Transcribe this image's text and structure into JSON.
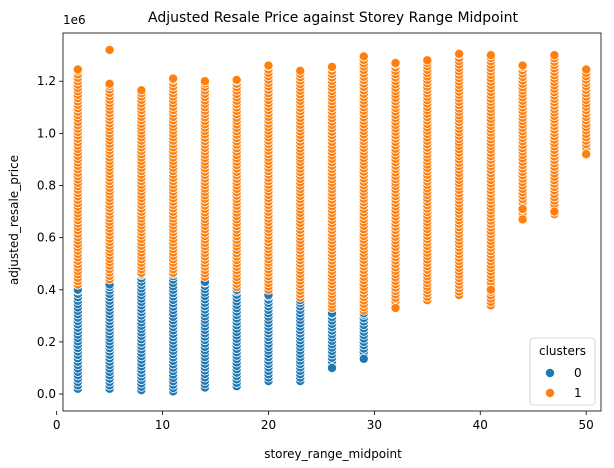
{
  "chart_data": {
    "type": "scatter",
    "title": "Adjusted Resale Price against Storey Range Midpoint",
    "xlabel": "storey_range_midpoint",
    "ylabel": "adjusted_resale_price",
    "y_offset_label": "1e6",
    "xlim": [
      0.6,
      51.4
    ],
    "ylim": [
      -65000,
      1385000
    ],
    "x_ticks": [
      0,
      10,
      20,
      30,
      40,
      50
    ],
    "x_tick_labels": [
      "0",
      "10",
      "20",
      "30",
      "40",
      "50"
    ],
    "y_ticks": [
      0,
      200000,
      400000,
      600000,
      800000,
      1000000,
      1200000
    ],
    "y_tick_labels": [
      "0.0",
      "0.2",
      "0.4",
      "0.6",
      "0.8",
      "1.0",
      "1.2"
    ],
    "grid": false,
    "legend": {
      "title": "clusters",
      "placement": "bottom-right"
    },
    "series": [
      {
        "name": "0",
        "color": "#1f77b4",
        "columns": [
          {
            "x": 2,
            "min": 20000,
            "max": 400000
          },
          {
            "x": 5,
            "min": 20000,
            "max": 420000
          },
          {
            "x": 8,
            "min": 15000,
            "max": 460000
          },
          {
            "x": 11,
            "min": 10000,
            "max": 460000
          },
          {
            "x": 14,
            "min": 25000,
            "max": 430000
          },
          {
            "x": 17,
            "min": 30000,
            "max": 400000
          },
          {
            "x": 20,
            "min": 50000,
            "max": 380000
          },
          {
            "x": 23,
            "min": 50000,
            "max": 360000
          },
          {
            "x": 26,
            "min": 100000,
            "max": 310000
          },
          {
            "x": 29,
            "min": 135000,
            "max": 310000
          }
        ],
        "extra_points": [
          {
            "x": 29,
            "y": 135000
          },
          {
            "x": 26,
            "y": 100000
          }
        ]
      },
      {
        "name": "1",
        "color": "#ff7f0e",
        "columns": [
          {
            "x": 2,
            "min": 420000,
            "max": 1245000
          },
          {
            "x": 5,
            "min": 440000,
            "max": 1190000
          },
          {
            "x": 8,
            "min": 465000,
            "max": 1165000
          },
          {
            "x": 11,
            "min": 465000,
            "max": 1210000
          },
          {
            "x": 14,
            "min": 450000,
            "max": 1200000
          },
          {
            "x": 17,
            "min": 410000,
            "max": 1205000
          },
          {
            "x": 20,
            "min": 400000,
            "max": 1260000
          },
          {
            "x": 23,
            "min": 370000,
            "max": 1240000
          },
          {
            "x": 26,
            "min": 330000,
            "max": 1255000
          },
          {
            "x": 29,
            "min": 320000,
            "max": 1295000
          },
          {
            "x": 32,
            "min": 330000,
            "max": 1270000
          },
          {
            "x": 35,
            "min": 360000,
            "max": 1280000
          },
          {
            "x": 38,
            "min": 380000,
            "max": 1305000
          },
          {
            "x": 41,
            "min": 340000,
            "max": 1300000
          },
          {
            "x": 44,
            "min": 670000,
            "max": 1260000
          },
          {
            "x": 47,
            "min": 690000,
            "max": 1300000
          },
          {
            "x": 50,
            "min": 920000,
            "max": 1245000
          }
        ],
        "extra_points": [
          {
            "x": 5,
            "y": 1320000
          },
          {
            "x": 41,
            "y": 400000
          },
          {
            "x": 44,
            "y": 710000
          },
          {
            "x": 44,
            "y": 670000
          },
          {
            "x": 47,
            "y": 700000
          },
          {
            "x": 50,
            "y": 920000
          },
          {
            "x": 32,
            "y": 330000
          }
        ]
      }
    ]
  }
}
